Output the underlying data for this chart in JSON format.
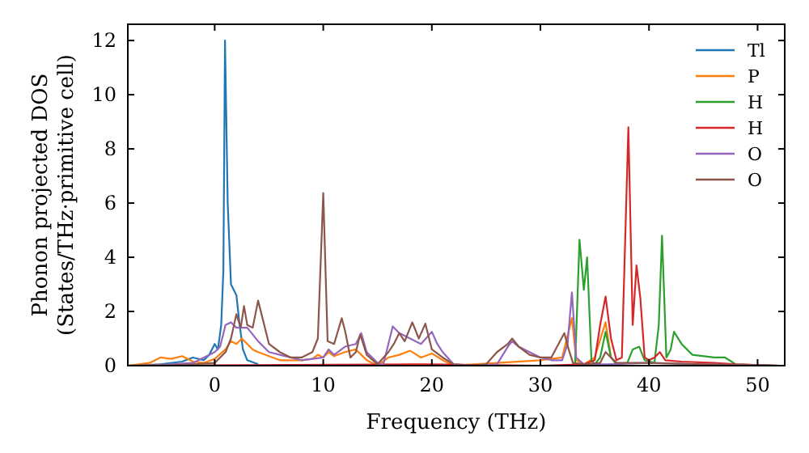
{
  "chart_data": {
    "type": "line",
    "xlabel": "Frequency (THz)",
    "ylabel": "Phonon projected DOS\n(States/THz·primitive cell)",
    "xlim": [
      -8,
      52.5
    ],
    "ylim": [
      0,
      12.6
    ],
    "xticks": [
      0,
      10,
      20,
      30,
      40,
      50
    ],
    "yticks": [
      0,
      2,
      4,
      6,
      8,
      10,
      12
    ],
    "legend": "top right",
    "grid": false,
    "marker": "none",
    "line_style": "solid",
    "series": [
      {
        "name": "Tl",
        "color": "#1f77b4",
        "x": [
          -8,
          -5,
          -3,
          -2,
          -1,
          -0.5,
          0,
          0.3,
          0.6,
          0.8,
          0.95,
          1.2,
          1.5,
          2,
          2.3,
          2.6,
          3,
          4
        ],
        "values": [
          0,
          0.05,
          0.15,
          0.3,
          0.2,
          0.4,
          0.8,
          0.6,
          1.5,
          3.5,
          12,
          6,
          3,
          2.6,
          1.5,
          0.6,
          0.2,
          0.05
        ]
      },
      {
        "name": "P",
        "color": "#ff7f0e",
        "x": [
          -8,
          -6,
          -5,
          -4,
          -3,
          -2,
          -1,
          0,
          1,
          1.5,
          2,
          2.5,
          3,
          3.5,
          4,
          5,
          6,
          8,
          9,
          9.5,
          10,
          10.5,
          11,
          12,
          13,
          13.5,
          14,
          15,
          16,
          17,
          18,
          19,
          20,
          21,
          22,
          26,
          30,
          32,
          32.9,
          33.3,
          34,
          35,
          36,
          36.5,
          37
        ],
        "values": [
          0,
          0.1,
          0.3,
          0.25,
          0.35,
          0.15,
          0.1,
          0.25,
          0.6,
          0.9,
          0.8,
          1.0,
          0.8,
          0.6,
          0.5,
          0.35,
          0.2,
          0.2,
          0.25,
          0.4,
          0.3,
          0.5,
          0.35,
          0.5,
          0.6,
          0.4,
          0.2,
          0,
          0.3,
          0.4,
          0.55,
          0.3,
          0.45,
          0.2,
          0,
          0.1,
          0.2,
          0.3,
          1.75,
          0.2,
          0.05,
          0.3,
          1.6,
          0.3,
          0.1
        ]
      },
      {
        "name": "H",
        "color": "#2ca02c",
        "x": [
          -8,
          30,
          32.8,
          33.2,
          33.6,
          34,
          34.3,
          34.7,
          35,
          35.5,
          36,
          36.5,
          37,
          38,
          38.5,
          39.1,
          39.6,
          40.5,
          40.9,
          41.2,
          41.6,
          42,
          42.3,
          43,
          44,
          46,
          47,
          48,
          52
        ],
        "values": [
          0,
          0,
          0,
          0.1,
          4.65,
          2.8,
          4.0,
          0.2,
          0.05,
          0.3,
          1.25,
          0.3,
          0.05,
          0.1,
          0.6,
          0.7,
          0.2,
          0.1,
          1.5,
          4.8,
          0.3,
          0.6,
          1.25,
          0.8,
          0.4,
          0.3,
          0.3,
          0.05,
          0
        ]
      },
      {
        "name": "H",
        "color": "#d62728",
        "x": [
          -8,
          20,
          30,
          34,
          35,
          35.5,
          36,
          36.5,
          37,
          37.5,
          38.1,
          38.5,
          38.85,
          39.2,
          39.6,
          40,
          40.5,
          41,
          41.5,
          43,
          46,
          48,
          52
        ],
        "values": [
          0,
          0.05,
          0,
          0.05,
          0.2,
          1.5,
          2.55,
          1.0,
          0.2,
          0.3,
          8.8,
          1.5,
          3.7,
          2.5,
          0.3,
          0.2,
          0.3,
          0.5,
          0.2,
          0.15,
          0.1,
          0.05,
          0
        ]
      },
      {
        "name": "O",
        "color": "#9467bd",
        "x": [
          -8,
          -4,
          -2,
          -1,
          0,
          0.5,
          1,
          1.5,
          2,
          3,
          4,
          5,
          6,
          8,
          10,
          10.5,
          11,
          12,
          13,
          13.5,
          14,
          15,
          15.5,
          16.4,
          17,
          18,
          19,
          20,
          20.5,
          21,
          22,
          24,
          26,
          27,
          27.4,
          28,
          29,
          30,
          31,
          32,
          32.5,
          32.9,
          33.3,
          34,
          36,
          40,
          45,
          52
        ],
        "values": [
          0,
          0.05,
          0.1,
          0.3,
          0.5,
          0.7,
          1.5,
          1.6,
          1.4,
          1.4,
          0.9,
          0.5,
          0.4,
          0.2,
          0.3,
          0.6,
          0.4,
          0.7,
          0.8,
          1.2,
          0.5,
          0.1,
          0,
          1.45,
          1.2,
          1.0,
          0.8,
          1.25,
          0.8,
          0.5,
          0.05,
          0,
          0.05,
          0.7,
          0.9,
          0.7,
          0.5,
          0.3,
          0.2,
          0.2,
          0.8,
          2.7,
          0.3,
          0.05,
          0.05,
          0.1,
          0.05,
          0
        ]
      },
      {
        "name": "O",
        "color": "#8c564b",
        "x": [
          -8,
          -4,
          -2,
          0,
          0.5,
          1,
          1.5,
          2,
          2.4,
          2.7,
          3,
          3.5,
          4,
          5,
          6,
          7,
          8,
          9,
          9.5,
          10,
          10.4,
          11,
          11.7,
          12,
          12.5,
          13,
          13.4,
          14,
          15,
          16,
          16.5,
          17,
          17.5,
          18.2,
          18.8,
          19.4,
          20,
          21,
          22,
          24,
          25,
          26,
          27,
          27.4,
          28,
          29,
          30,
          31,
          32.2,
          32.6,
          33,
          34,
          35.5,
          36,
          37,
          38,
          40,
          45,
          52
        ],
        "values": [
          0,
          0.02,
          0.05,
          0.1,
          0.3,
          0.5,
          1.0,
          1.9,
          1.4,
          2.2,
          1.5,
          1.4,
          2.4,
          0.8,
          0.5,
          0.3,
          0.3,
          0.5,
          1.0,
          6.37,
          0.9,
          0.8,
          1.75,
          1.3,
          0.3,
          0.5,
          1.15,
          0.4,
          0.05,
          0.5,
          0.8,
          1.2,
          0.9,
          1.6,
          1.0,
          1.55,
          0.6,
          0.3,
          0.05,
          0,
          0.05,
          0.5,
          0.8,
          1.0,
          0.7,
          0.4,
          0.3,
          0.3,
          1.2,
          0.6,
          0.1,
          0.05,
          0.1,
          0.5,
          0.1,
          0.1,
          0.1,
          0.05,
          0
        ]
      }
    ]
  }
}
